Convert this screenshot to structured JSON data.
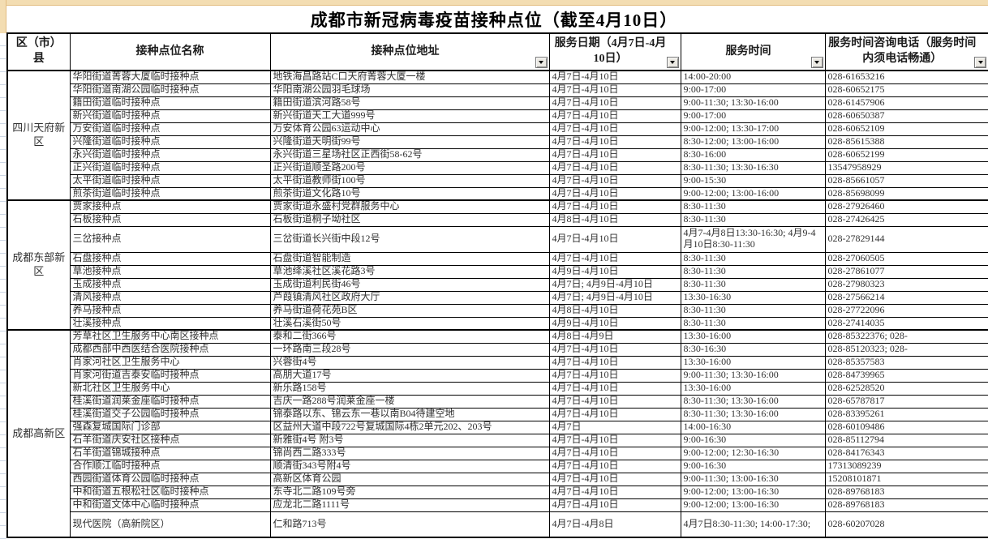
{
  "page": {
    "title": "成都市新冠病毒疫苗接种点位（截至4月10日）"
  },
  "colors": {
    "accent_strip": "#f3ddb2",
    "accent_strip_border": "#e2bc80",
    "grid_border": "#000000",
    "text": "#303030"
  },
  "table": {
    "headers": {
      "district": "区（市）\n县",
      "name": "接种点位名称",
      "address": "接种点位地址",
      "date": "服务日期（4月7日-4月10日）",
      "time": "服务时间",
      "phone": "服务时间咨询电话（服务时间内须电话畅通）"
    },
    "filter_columns": [
      "address",
      "date",
      "time",
      "phone"
    ],
    "groups": [
      {
        "district": "四川天府新区",
        "rows": [
          {
            "name": "华阳街道菁蓉大厦临时接种点",
            "address": "地铁海昌路站C口天府菁蓉大厦一楼",
            "date": "4月7日-4月10日",
            "time": "14:00-20:00",
            "phone": "028-61653216"
          },
          {
            "name": "华阳街道南湖公园临时接种点",
            "address": "华阳南湖公园羽毛球场",
            "date": "4月7日-4月10日",
            "time": "9:00-17:00",
            "phone": "028-60652175"
          },
          {
            "name": "籍田街道临时接种点",
            "address": "籍田街道滨河路58号",
            "date": "4月7日-4月10日",
            "time": "9:00-11:30; 13:30-16:00",
            "phone": "028-61457906"
          },
          {
            "name": "新兴街道临时接种点",
            "address": "新兴街道天工大道999号",
            "date": "4月7日-4月10日",
            "time": "9:00-17:00",
            "phone": "028-60650387"
          },
          {
            "name": "万安街道临时接种点",
            "address": "万安体育公园63运动中心",
            "date": "4月7日-4月10日",
            "time": "9:00-12:00; 13:30-17:00",
            "phone": "028-60652109"
          },
          {
            "name": "兴隆街道临时接种点",
            "address": "兴隆街道天明街99号",
            "date": "4月7日-4月10日",
            "time": "8:30-12:00; 13:00-16:00",
            "phone": "028-85615388"
          },
          {
            "name": "永兴街道临时接种点",
            "address": "永兴街道三星场社区正西街58-62号",
            "date": "4月7日-4月10日",
            "time": "8:30-16:00",
            "phone": "028-60652199"
          },
          {
            "name": "正兴街道临时接种点",
            "address": "正兴街道顺圣路200号",
            "date": "4月7日-4月10日",
            "time": "8:30-11:30; 13:30-16:30",
            "phone": "13547958929"
          },
          {
            "name": "太平街道临时接种点",
            "address": "太平街道教师街100号",
            "date": "4月7日-4月10日",
            "time": "9:00-15:30",
            "phone": "028-85661057"
          },
          {
            "name": "煎茶街道临时接种点",
            "address": "煎茶街道文化路10号",
            "date": "4月7日-4月10日",
            "time": "9:00-12:00; 13:00-16:00",
            "phone": "028-85698099"
          }
        ]
      },
      {
        "district": "成都东部新区",
        "rows": [
          {
            "name": "贾家接种点",
            "address": "贾家街道永盛村党群服务中心",
            "date": "4月7日-4月10日",
            "time": "8:30-11:30",
            "phone": "028-27926460"
          },
          {
            "name": "石板接种点",
            "address": "石板街道桐子坳社区",
            "date": "4月8日-4月10日",
            "time": "8:30-11:30",
            "phone": "028-27426425"
          },
          {
            "name": "三岔接种点",
            "address": "三岔街道长兴街中段12号",
            "date": "4月7日-4月10日",
            "time": "4月7-4月8日13:30-16:30; 4月9-4月10日8:30-11:30",
            "phone": "028-27829144",
            "h": 2
          },
          {
            "name": "石盘接种点",
            "address": "石盘街道智能制造",
            "date": "4月7日-4月10日",
            "time": "8:30-11:30",
            "phone": "028-27060505"
          },
          {
            "name": "草池接种点",
            "address": "草池绛溪社区溪花路3号",
            "date": "4月9日-4月10日",
            "time": "8:30-11:30",
            "phone": "028-27861077"
          },
          {
            "name": "玉成接种点",
            "address": "玉成街道利民街46号",
            "date": "4月7日; 4月9日-4月10日",
            "time": "8:30-11:30",
            "phone": "028-27980323"
          },
          {
            "name": "清风接种点",
            "address": "芦葭镇清风社区政府大厅",
            "date": "4月7日; 4月9日-4月10日",
            "time": "13:30-16:30",
            "phone": "028-27566214"
          },
          {
            "name": "养马接种点",
            "address": "养马街道荷花苑B区",
            "date": "4月8日-4月10日",
            "time": "8:30-11:30",
            "phone": "028-27722096"
          },
          {
            "name": "壮溪接种点",
            "address": "壮溪石溪街50号",
            "date": "4月9日-4月10日",
            "time": "8:30-11:30",
            "phone": "028-27414035"
          }
        ]
      },
      {
        "district": "成都高新区",
        "rows": [
          {
            "name": "芳草社区卫生服务中心南区接种点",
            "address": "泰和二街366号",
            "date": "4月8日-4月9日",
            "time": "13:30-16:00",
            "phone": "028-85322376; 028-"
          },
          {
            "name": "成都西部中西医结合医院接种点",
            "address": "一环路南三段28号",
            "date": "4月7日-4月10日",
            "time": "8:30-16:30",
            "phone": "028-85120323; 028-"
          },
          {
            "name": "肖家河社区卫生服务中心",
            "address": "兴蓉街4号",
            "date": "4月7日-4月10日",
            "time": "13:30-16:00",
            "phone": "028-85357583"
          },
          {
            "name": "肖家河街道吉泰安临时接种点",
            "address": "高朋大道17号",
            "date": "4月7日-4月10日",
            "time": "9:00-11:30; 13:30-16:00",
            "phone": "028-84739965"
          },
          {
            "name": "新北社区卫生服务中心",
            "address": "新乐路158号",
            "date": "4月7日-4月10日",
            "time": "13:30-16:00",
            "phone": "028-62528520"
          },
          {
            "name": "桂溪街道润莱金座临时接种点",
            "address": "吉庆一路288号润莱金座一楼",
            "date": "4月7日-4月10日",
            "time": "8:30-11:30; 13:30-16:00",
            "phone": "028-65787817"
          },
          {
            "name": "桂溪街道交子公园临时接种点",
            "address": "锦泰路以东、锦云东一巷以南B04待建空地",
            "date": "4月7日-4月10日",
            "time": "8:30-11:30; 13:30-16:00",
            "phone": "028-83395261"
          },
          {
            "name": "强森复城国际门诊部",
            "address": "区益州大道中段722号复城国际4栋2单元202、203号",
            "date": "4月7日",
            "time": "14:00-16:30",
            "phone": "028-60109486"
          },
          {
            "name": "石羊街道庆安社区接种点",
            "address": "新雅街4号 附3号",
            "date": "4月7日-4月10日",
            "time": "9:00-16:30",
            "phone": "028-85112794"
          },
          {
            "name": "石羊街道锦城接种点",
            "address": "锦尚西二路333号",
            "date": "4月7日-4月10日",
            "time": "9:00-12:00; 12:30-16:30",
            "phone": "028-84176343"
          },
          {
            "name": "合作顺江临时接种点",
            "address": "顺清街343号附4号",
            "date": "4月7日-4月10日",
            "time": "9:00-16:30",
            "phone": "17313089239"
          },
          {
            "name": "西园街道体育公园临时接种点",
            "address": "高新区体育公园",
            "date": "4月7日-4月10日",
            "time": "9:00-11:30; 13:00-16:30",
            "phone": "15208101871"
          },
          {
            "name": "中和街道五根松社区临时接种点",
            "address": "东寺北二路109号旁",
            "date": "4月7日-4月10日",
            "time": "9:00-12:00; 13:00-16:30",
            "phone": "028-89768183"
          },
          {
            "name": "中和街道文体中心临时接种点",
            "address": "应龙北二路1111号",
            "date": "4月7日-4月10日",
            "time": "9:00-12:00; 13:00-16:30",
            "phone": "028-89768183"
          },
          {
            "name": "现代医院（高新院区）",
            "address": "仁和路713号",
            "date": "4月7日-4月8日",
            "time": "4月7日8:30-11:30; 14:00-17:30;",
            "phone": "028-60207028",
            "h": 2
          }
        ]
      }
    ]
  }
}
